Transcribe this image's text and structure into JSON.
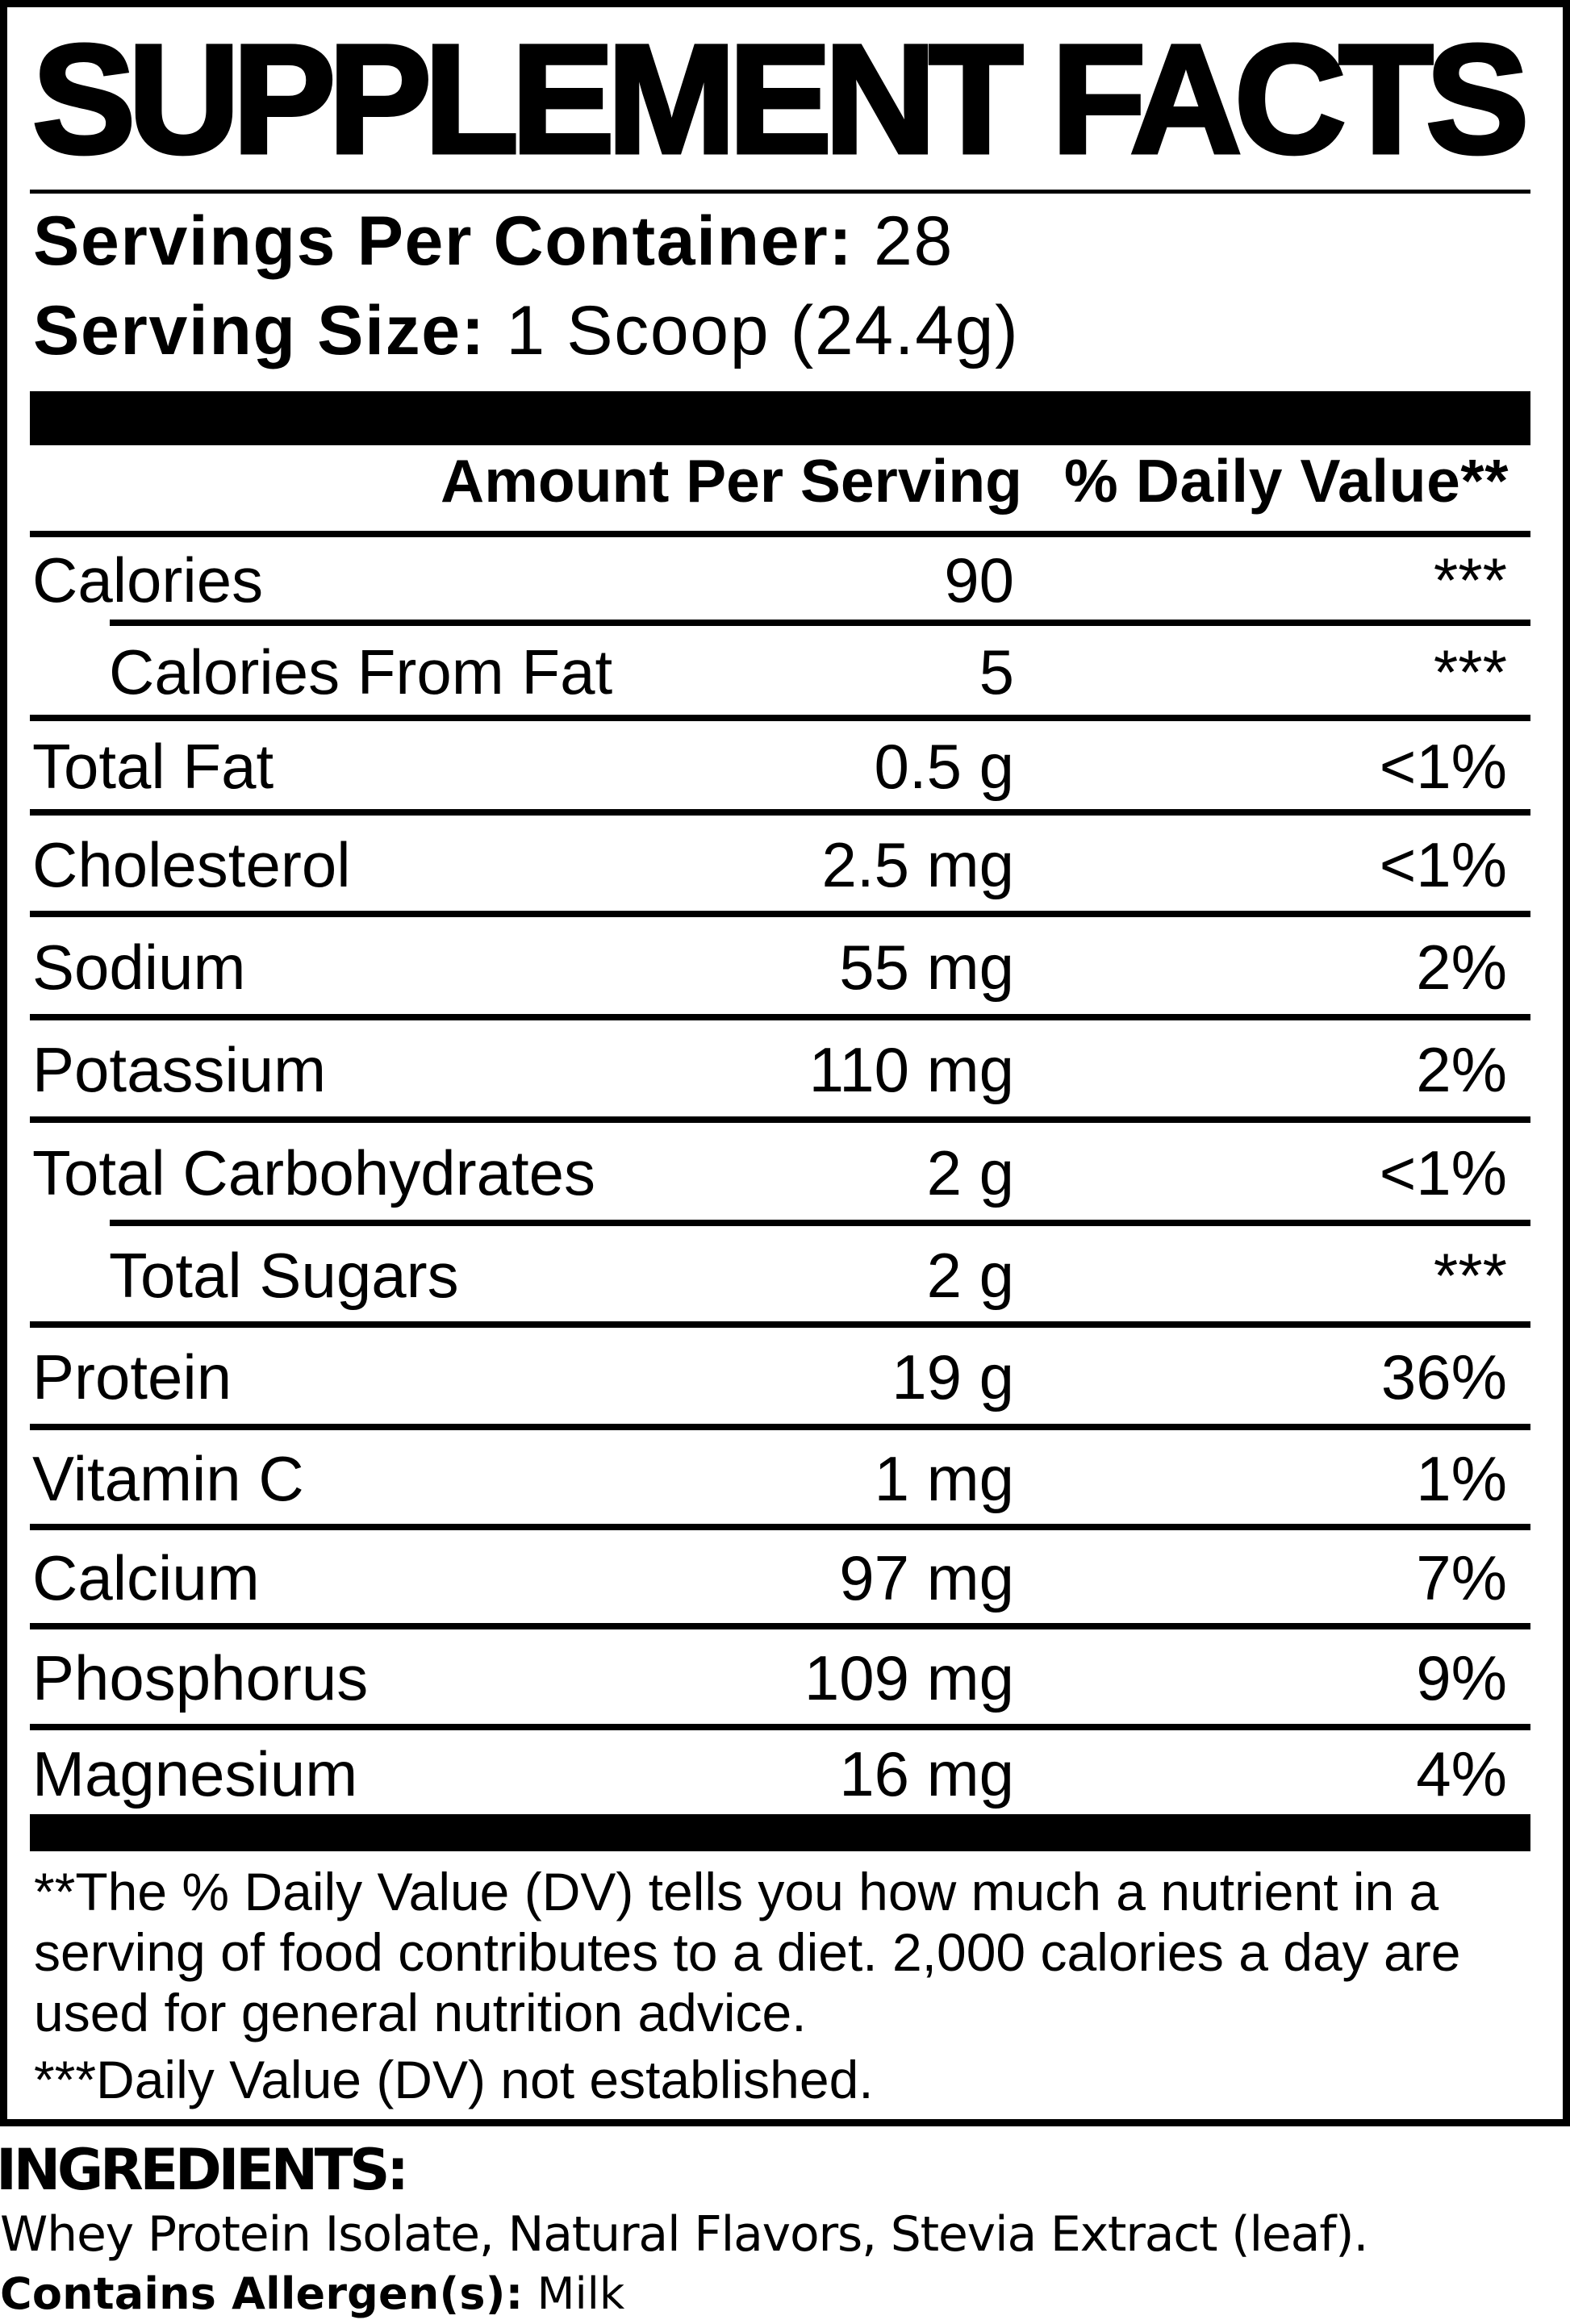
{
  "title": "SUPPLEMENT FACTS",
  "serving_info": {
    "servings_per_container_label": "Servings Per Container:",
    "servings_per_container_value": "28",
    "serving_size_label": "Serving Size:",
    "serving_size_value": "1 Scoop (24.4g)"
  },
  "table": {
    "header": {
      "amount_column": "Amount Per Serving",
      "daily_value_column": "% Daily Value**"
    },
    "rows": [
      {
        "name": "Calories",
        "amount": "90",
        "daily_value": "***",
        "indent": false,
        "separator_after": "indented"
      },
      {
        "name": "Calories From Fat",
        "amount": "5",
        "daily_value": "***",
        "indent": true,
        "separator_after": "full"
      },
      {
        "name": "Total Fat",
        "amount": "0.5 g",
        "daily_value": "<1%",
        "indent": false,
        "separator_after": "full"
      },
      {
        "name": "Cholesterol",
        "amount": "2.5 mg",
        "daily_value": "<1%",
        "indent": false,
        "separator_after": "full"
      },
      {
        "name": "Sodium",
        "amount": "55 mg",
        "daily_value": "2%",
        "indent": false,
        "separator_after": "full"
      },
      {
        "name": "Potassium",
        "amount": "110 mg",
        "daily_value": "2%",
        "indent": false,
        "separator_after": "full"
      },
      {
        "name": "Total Carbohydrates",
        "amount": "2 g",
        "daily_value": "<1%",
        "indent": false,
        "separator_after": "indented"
      },
      {
        "name": "Total Sugars",
        "amount": "2 g",
        "daily_value": "***",
        "indent": true,
        "separator_after": "full"
      },
      {
        "name": "Protein",
        "amount": "19 g",
        "daily_value": "36%",
        "indent": false,
        "separator_after": "full"
      },
      {
        "name": "Vitamin C",
        "amount": "1 mg",
        "daily_value": "1%",
        "indent": false,
        "separator_after": "full"
      },
      {
        "name": "Calcium",
        "amount": "97 mg",
        "daily_value": "7%",
        "indent": false,
        "separator_after": "full"
      },
      {
        "name": "Phosphorus",
        "amount": "109 mg",
        "daily_value": "9%",
        "indent": false,
        "separator_after": "full"
      },
      {
        "name": "Magnesium",
        "amount": "16 mg",
        "daily_value": "4%",
        "indent": false,
        "separator_after": "none"
      }
    ]
  },
  "footnotes": {
    "daily_value_note_lines": [
      "**The % Daily Value (DV) tells you how much a nutrient in a",
      "serving of food contributes to a diet. 2,000 calories a day are",
      "used for general nutrition advice."
    ],
    "not_established_note": "***Daily Value (DV) not established."
  },
  "ingredients": {
    "heading": "INGREDIENTS:",
    "list": "Whey Protein Isolate, Natural Flavors, Stevia Extract (leaf).",
    "allergen_label": "Contains Allergen(s):",
    "allergen_value": "Milk"
  },
  "colors": {
    "ink": "#000000",
    "background": "#ffffff"
  }
}
